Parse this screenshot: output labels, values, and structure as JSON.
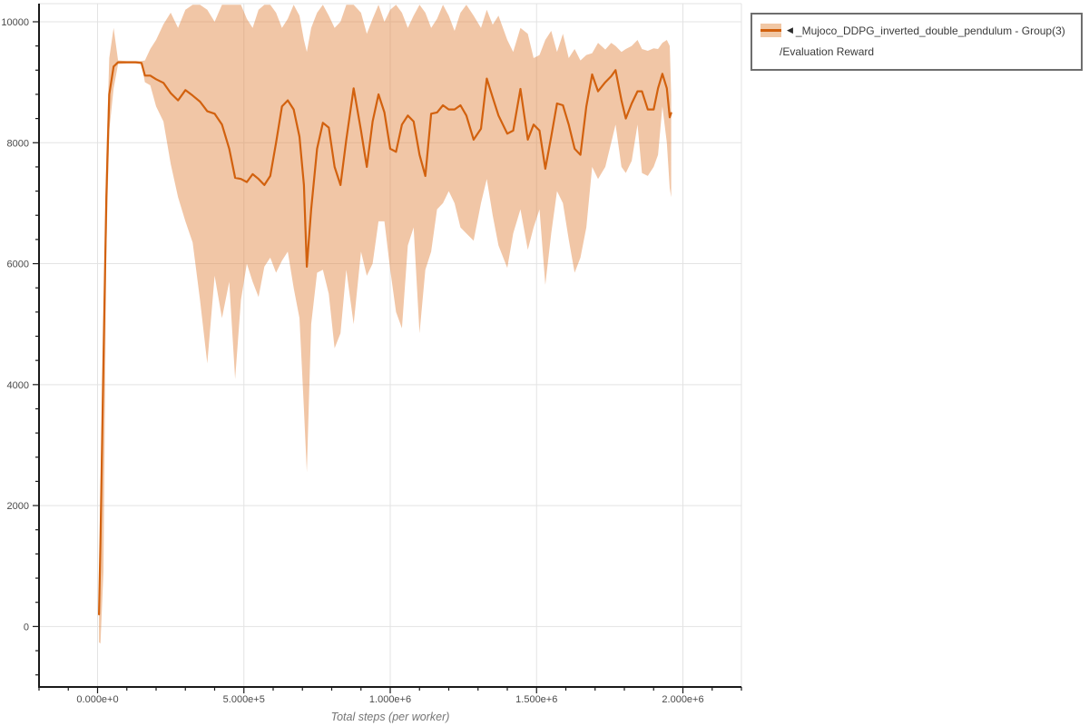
{
  "legend": {
    "marker": "◀",
    "series_label": "_Mujoco_DDPG_inverted_double_pendulum - Group(3)",
    "metric_label": "/Evaluation Reward"
  },
  "chart_data": {
    "type": "line",
    "title": "",
    "xlabel": "Total steps (per worker)",
    "ylabel": "",
    "grid": true,
    "legend_position": "top-right",
    "xlim": [
      -200000,
      2200000
    ],
    "ylim": [
      -1000,
      10300
    ],
    "x_minor_step": 100000,
    "y_minor_step": 400,
    "x_ticks": [
      {
        "value": 0,
        "label": "0.000e+0"
      },
      {
        "value": 500000,
        "label": "5.000e+5"
      },
      {
        "value": 1000000,
        "label": "1.000e+6"
      },
      {
        "value": 1500000,
        "label": "1.500e+6"
      },
      {
        "value": 2000000,
        "label": "2.000e+6"
      }
    ],
    "y_ticks": [
      {
        "value": 0,
        "label": "0"
      },
      {
        "value": 2000,
        "label": "2000"
      },
      {
        "value": 4000,
        "label": "4000"
      },
      {
        "value": 6000,
        "label": "6000"
      },
      {
        "value": 8000,
        "label": "8000"
      },
      {
        "value": 10000,
        "label": "10000"
      }
    ],
    "colors": {
      "line": "#d2610e",
      "band_fill": "#e0813a",
      "band_opacity": 0.45,
      "grid": "#e3e3e3",
      "axis": "#1a1a1a",
      "tick_label": "#4a4a4a",
      "axis_title": "#757575"
    },
    "x_unit": 100000,
    "series": [
      {
        "name": "_Mujoco_DDPG_inverted_double_pendulum - Group(3)/Evaluation Reward",
        "points_format": [
          "x_in_1e5_steps",
          "mean",
          "band_low",
          "band_high"
        ],
        "points": [
          [
            0.05,
            200,
            -260,
            600
          ],
          [
            0.1,
            1400,
            -280,
            2200
          ],
          [
            0.2,
            4400,
            900,
            5100
          ],
          [
            0.3,
            7100,
            6200,
            7800
          ],
          [
            0.4,
            8800,
            8200,
            9400
          ],
          [
            0.55,
            9260,
            8900,
            9900
          ],
          [
            0.7,
            9330,
            9300,
            9360
          ],
          [
            1.0,
            9330,
            9310,
            9350
          ],
          [
            1.3,
            9330,
            9310,
            9350
          ],
          [
            1.5,
            9320,
            9300,
            9350
          ],
          [
            1.62,
            9110,
            9000,
            9360
          ],
          [
            1.8,
            9110,
            8950,
            9550
          ],
          [
            2.0,
            9050,
            8600,
            9700
          ],
          [
            2.25,
            8990,
            8350,
            9960
          ],
          [
            2.5,
            8820,
            7650,
            10150
          ],
          [
            2.75,
            8700,
            7100,
            9900
          ],
          [
            3.0,
            8870,
            6700,
            10200
          ],
          [
            3.25,
            8780,
            6350,
            10280
          ],
          [
            3.5,
            8680,
            5400,
            10280
          ],
          [
            3.75,
            8520,
            4350,
            10200
          ],
          [
            4.0,
            8480,
            5800,
            10000
          ],
          [
            4.25,
            8300,
            5100,
            10280
          ],
          [
            4.5,
            7900,
            5700,
            10280
          ],
          [
            4.7,
            7420,
            4090,
            10280
          ],
          [
            4.9,
            7400,
            5400,
            10280
          ],
          [
            5.1,
            7350,
            6000,
            10050
          ],
          [
            5.3,
            7480,
            5700,
            9900
          ],
          [
            5.5,
            7400,
            5450,
            10200
          ],
          [
            5.7,
            7300,
            5950,
            10280
          ],
          [
            5.9,
            7450,
            6100,
            10280
          ],
          [
            6.1,
            8000,
            5850,
            10150
          ],
          [
            6.3,
            8600,
            6050,
            9900
          ],
          [
            6.5,
            8700,
            6200,
            10050
          ],
          [
            6.7,
            8550,
            5600,
            10280
          ],
          [
            6.9,
            8100,
            5100,
            10100
          ],
          [
            7.05,
            7300,
            3600,
            9700
          ],
          [
            7.15,
            5950,
            2550,
            9500
          ],
          [
            7.3,
            6900,
            5000,
            9900
          ],
          [
            7.5,
            7900,
            5850,
            10150
          ],
          [
            7.7,
            8330,
            5900,
            10280
          ],
          [
            7.9,
            8250,
            5500,
            10100
          ],
          [
            8.1,
            7600,
            4600,
            9900
          ],
          [
            8.3,
            7300,
            4850,
            10000
          ],
          [
            8.5,
            8050,
            5900,
            10280
          ],
          [
            8.75,
            8900,
            5000,
            10280
          ],
          [
            9.0,
            8200,
            6200,
            10150
          ],
          [
            9.2,
            7600,
            5800,
            9800
          ],
          [
            9.4,
            8350,
            6000,
            10050
          ],
          [
            9.6,
            8800,
            6700,
            10280
          ],
          [
            9.8,
            8500,
            6700,
            10000
          ],
          [
            10.0,
            7900,
            5900,
            10200
          ],
          [
            10.2,
            7850,
            5200,
            10280
          ],
          [
            10.4,
            8300,
            4930,
            10150
          ],
          [
            10.6,
            8450,
            6300,
            9900
          ],
          [
            10.8,
            8350,
            6600,
            10100
          ],
          [
            11.0,
            7800,
            4850,
            10280
          ],
          [
            11.2,
            7450,
            5900,
            10150
          ],
          [
            11.4,
            8480,
            6200,
            9900
          ],
          [
            11.6,
            8500,
            6900,
            10050
          ],
          [
            11.8,
            8620,
            7000,
            10280
          ],
          [
            12.0,
            8550,
            7200,
            10100
          ],
          [
            12.2,
            8550,
            7000,
            9850
          ],
          [
            12.4,
            8620,
            6600,
            10150
          ],
          [
            12.6,
            8450,
            6500,
            10280
          ],
          [
            12.85,
            8050,
            6380,
            10100
          ],
          [
            13.1,
            8230,
            7000,
            9900
          ],
          [
            13.3,
            9060,
            7400,
            10200
          ],
          [
            13.5,
            8750,
            6800,
            9950
          ],
          [
            13.7,
            8450,
            6300,
            10100
          ],
          [
            14.0,
            8150,
            5930,
            9700
          ],
          [
            14.2,
            8200,
            6500,
            9500
          ],
          [
            14.45,
            8890,
            6900,
            9900
          ],
          [
            14.7,
            8050,
            6230,
            9800
          ],
          [
            14.9,
            8300,
            6600,
            9400
          ],
          [
            15.1,
            8200,
            6900,
            9450
          ],
          [
            15.3,
            7570,
            5650,
            9700
          ],
          [
            15.5,
            8100,
            6500,
            9850
          ],
          [
            15.7,
            8650,
            7200,
            9500
          ],
          [
            15.9,
            8620,
            7000,
            9800
          ],
          [
            16.1,
            8300,
            6400,
            9400
          ],
          [
            16.3,
            7900,
            5850,
            9550
          ],
          [
            16.5,
            7800,
            6100,
            9360
          ],
          [
            16.7,
            8600,
            6600,
            9450
          ],
          [
            16.9,
            9130,
            7600,
            9480
          ],
          [
            17.1,
            8850,
            7400,
            9650
          ],
          [
            17.35,
            9000,
            7600,
            9540
          ],
          [
            17.55,
            9100,
            8000,
            9650
          ],
          [
            17.7,
            9200,
            8300,
            9600
          ],
          [
            17.9,
            8700,
            7600,
            9500
          ],
          [
            18.05,
            8400,
            7500,
            9550
          ],
          [
            18.25,
            8650,
            7700,
            9600
          ],
          [
            18.45,
            8850,
            8300,
            9700
          ],
          [
            18.6,
            8850,
            7500,
            9550
          ],
          [
            18.8,
            8550,
            7450,
            9520
          ],
          [
            19.0,
            8550,
            7600,
            9560
          ],
          [
            19.15,
            8900,
            7800,
            9550
          ],
          [
            19.3,
            9140,
            8600,
            9650
          ],
          [
            19.45,
            8900,
            8000,
            9700
          ],
          [
            19.55,
            8420,
            7250,
            9600
          ],
          [
            19.6,
            8490,
            7100,
            8800
          ]
        ]
      }
    ]
  }
}
